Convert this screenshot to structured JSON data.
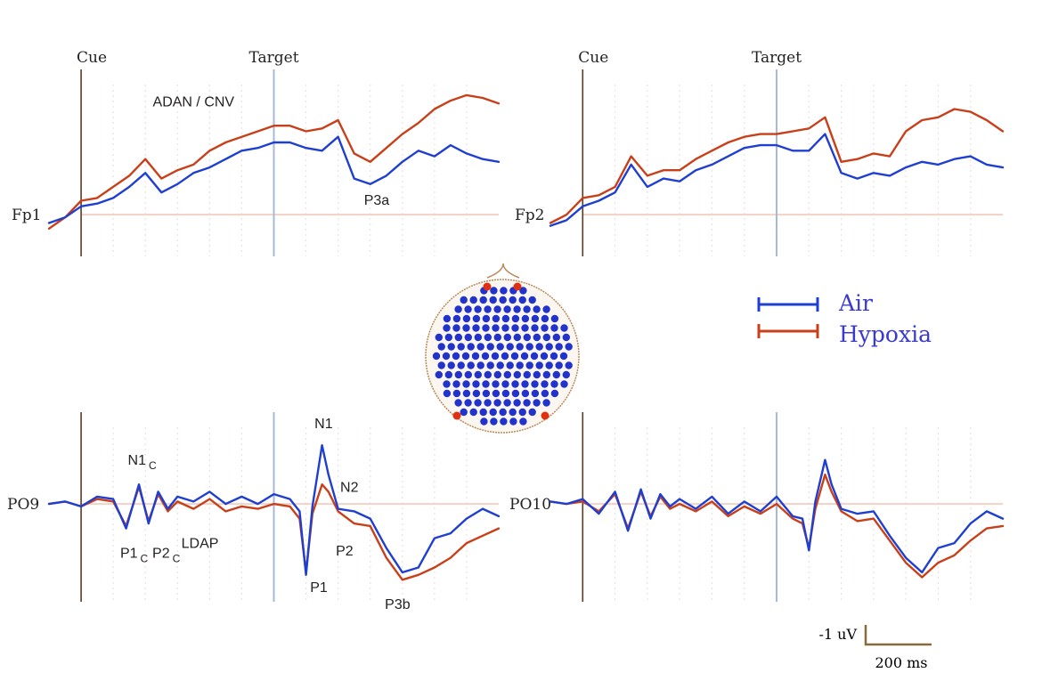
{
  "colors": {
    "air": "#1f3fd0",
    "hypoxia": "#c8401a",
    "marker_line": "#5a3a25",
    "target_line": "#a8b8d8",
    "baseline": "#f1d2c4",
    "grid": "#f2dede",
    "scale_bar": "#8a6a3a",
    "legend_text": "#3a3acf",
    "electrode_dot": "#2233cc",
    "electrode_highlight": "#e03010"
  },
  "legend": {
    "air": "Air",
    "hypoxia": "Hypoxia"
  },
  "head_map": {
    "icon": "electrode-cap-head-map",
    "highlighted_electrodes": [
      "Fp1",
      "Fp2",
      "PO9",
      "PO10"
    ]
  },
  "scale_bar": {
    "amplitude_label": "-1 uV",
    "time_label": "200 ms"
  },
  "chart_data": [
    {
      "type": "line",
      "channel": "Fp1",
      "markers": {
        "cue": "Cue",
        "target": "Target"
      },
      "x_range": [
        -100,
        1300
      ],
      "y_range": [
        -1.5,
        5
      ],
      "cue_time": 0,
      "target_time": 600,
      "component_labels": [
        {
          "text": "ADAN / CNV",
          "x": 350,
          "y": 3.9
        },
        {
          "text": "P3a",
          "x": 920,
          "y": 0.35
        }
      ],
      "series": [
        {
          "name": "Air",
          "x": [
            -100,
            -50,
            0,
            50,
            100,
            150,
            200,
            250,
            300,
            350,
            400,
            450,
            500,
            550,
            600,
            650,
            700,
            750,
            800,
            850,
            900,
            950,
            1000,
            1050,
            1100,
            1150,
            1200,
            1250,
            1300
          ],
          "y": [
            -0.3,
            -0.1,
            0.3,
            0.4,
            0.6,
            1.0,
            1.5,
            0.8,
            1.1,
            1.5,
            1.7,
            2.0,
            2.3,
            2.4,
            2.6,
            2.6,
            2.4,
            2.3,
            2.8,
            1.3,
            1.1,
            1.4,
            1.9,
            2.3,
            2.1,
            2.5,
            2.2,
            2.0,
            1.9
          ]
        },
        {
          "name": "Hypoxia",
          "x": [
            -100,
            -50,
            0,
            50,
            100,
            150,
            200,
            250,
            300,
            350,
            400,
            450,
            500,
            550,
            600,
            650,
            700,
            750,
            800,
            850,
            900,
            950,
            1000,
            1050,
            1100,
            1150,
            1200,
            1250,
            1300
          ],
          "y": [
            -0.5,
            -0.1,
            0.5,
            0.6,
            1.0,
            1.4,
            2.0,
            1.3,
            1.6,
            1.8,
            2.3,
            2.6,
            2.8,
            3.0,
            3.2,
            3.2,
            3.0,
            3.1,
            3.4,
            2.2,
            1.9,
            2.4,
            2.9,
            3.3,
            3.8,
            4.1,
            4.3,
            4.2,
            4.0
          ]
        }
      ]
    },
    {
      "type": "line",
      "channel": "Fp2",
      "markers": {
        "cue": "Cue",
        "target": "Target"
      },
      "x_range": [
        -100,
        1300
      ],
      "y_range": [
        -1.5,
        5
      ],
      "cue_time": 0,
      "target_time": 600,
      "component_labels": [],
      "series": [
        {
          "name": "Air",
          "x": [
            -100,
            -50,
            0,
            50,
            100,
            150,
            200,
            250,
            300,
            350,
            400,
            450,
            500,
            550,
            600,
            650,
            700,
            750,
            800,
            850,
            900,
            950,
            1000,
            1050,
            1100,
            1150,
            1200,
            1250,
            1300
          ],
          "y": [
            -0.4,
            -0.2,
            0.3,
            0.5,
            0.8,
            1.8,
            1.0,
            1.3,
            1.2,
            1.6,
            1.8,
            2.1,
            2.4,
            2.5,
            2.5,
            2.3,
            2.3,
            2.9,
            1.5,
            1.3,
            1.5,
            1.4,
            1.7,
            1.9,
            1.8,
            2.0,
            2.1,
            1.8,
            1.7
          ]
        },
        {
          "name": "Hypoxia",
          "x": [
            -100,
            -50,
            0,
            50,
            100,
            150,
            200,
            250,
            300,
            350,
            400,
            450,
            500,
            550,
            600,
            650,
            700,
            750,
            800,
            850,
            900,
            950,
            1000,
            1050,
            1100,
            1150,
            1200,
            1250,
            1300
          ],
          "y": [
            -0.3,
            0.0,
            0.6,
            0.7,
            1.0,
            2.1,
            1.4,
            1.6,
            1.6,
            2.0,
            2.3,
            2.6,
            2.8,
            2.9,
            2.9,
            3.0,
            3.1,
            3.5,
            1.9,
            2.0,
            2.2,
            2.1,
            3.0,
            3.4,
            3.5,
            3.8,
            3.7,
            3.4,
            3.0
          ]
        }
      ]
    },
    {
      "type": "line",
      "channel": "PO9",
      "markers": {},
      "x_range": [
        -100,
        1300
      ],
      "y_range": [
        -4,
        3.5
      ],
      "cue_time": 0,
      "target_time": 600,
      "component_labels": [
        {
          "text": "N1",
          "sub": "C",
          "x": 190,
          "y": 1.6
        },
        {
          "text": "P1",
          "sub": "C",
          "x": 165,
          "y": -2.2
        },
        {
          "text": "P2",
          "sub": "C",
          "x": 265,
          "y": -2.2
        },
        {
          "text": "LDAP",
          "x": 370,
          "y": -1.8
        },
        {
          "text": "N1",
          "x": 755,
          "y": 3.1
        },
        {
          "text": "N2",
          "x": 835,
          "y": 0.5
        },
        {
          "text": "P1",
          "x": 740,
          "y": -3.6
        },
        {
          "text": "P2",
          "x": 820,
          "y": -2.1
        },
        {
          "text": "P3b",
          "x": 985,
          "y": -4.3
        }
      ],
      "series": [
        {
          "name": "Air",
          "x": [
            -100,
            -50,
            0,
            50,
            100,
            140,
            180,
            210,
            240,
            270,
            300,
            350,
            400,
            450,
            500,
            550,
            600,
            650,
            680,
            700,
            720,
            750,
            770,
            800,
            850,
            900,
            950,
            1000,
            1050,
            1100,
            1150,
            1200,
            1250,
            1300
          ],
          "y": [
            0.0,
            0.1,
            -0.1,
            0.3,
            0.2,
            -1.0,
            0.8,
            -0.8,
            0.5,
            -0.2,
            0.3,
            0.1,
            0.5,
            0.0,
            0.3,
            0.0,
            0.4,
            0.2,
            -0.3,
            -2.9,
            -0.1,
            2.4,
            1.2,
            -0.2,
            -0.3,
            -0.6,
            -1.8,
            -2.8,
            -2.6,
            -1.4,
            -1.2,
            -0.6,
            -0.2,
            -0.5
          ]
        },
        {
          "name": "Hypoxia",
          "x": [
            -100,
            -50,
            0,
            50,
            100,
            140,
            180,
            210,
            240,
            270,
            300,
            350,
            400,
            450,
            500,
            550,
            600,
            650,
            680,
            700,
            720,
            750,
            770,
            800,
            850,
            900,
            950,
            1000,
            1050,
            1100,
            1150,
            1200,
            1250,
            1300
          ],
          "y": [
            0.0,
            0.1,
            -0.1,
            0.2,
            0.1,
            -0.9,
            0.7,
            -0.7,
            0.4,
            -0.3,
            0.1,
            -0.2,
            0.2,
            -0.3,
            -0.1,
            -0.2,
            0.0,
            -0.1,
            -0.6,
            -2.8,
            -0.4,
            0.8,
            0.5,
            -0.3,
            -0.8,
            -0.9,
            -2.2,
            -3.1,
            -2.9,
            -2.6,
            -2.2,
            -1.6,
            -1.3,
            -1.0
          ]
        }
      ]
    },
    {
      "type": "line",
      "channel": "PO10",
      "markers": {},
      "x_range": [
        -100,
        1300
      ],
      "y_range": [
        -4,
        3.5
      ],
      "cue_time": 0,
      "target_time": 600,
      "component_labels": [],
      "series": [
        {
          "name": "Air",
          "x": [
            -100,
            -50,
            0,
            50,
            100,
            140,
            180,
            210,
            240,
            270,
            300,
            350,
            400,
            450,
            500,
            550,
            600,
            650,
            680,
            700,
            720,
            750,
            770,
            800,
            850,
            900,
            950,
            1000,
            1050,
            1100,
            1150,
            1200,
            1250,
            1300
          ],
          "y": [
            0.1,
            0.0,
            0.2,
            -0.4,
            0.5,
            -1.1,
            0.6,
            -0.6,
            0.4,
            -0.1,
            0.2,
            -0.2,
            0.3,
            -0.4,
            0.1,
            -0.3,
            0.3,
            -0.5,
            -0.6,
            -1.9,
            0.1,
            1.8,
            0.8,
            -0.2,
            -0.4,
            -0.3,
            -1.3,
            -2.2,
            -2.8,
            -1.8,
            -1.6,
            -0.8,
            -0.3,
            -0.6
          ]
        },
        {
          "name": "Hypoxia",
          "x": [
            -100,
            -50,
            0,
            50,
            100,
            140,
            180,
            210,
            240,
            270,
            300,
            350,
            400,
            450,
            500,
            550,
            600,
            650,
            680,
            700,
            720,
            750,
            770,
            800,
            850,
            900,
            950,
            1000,
            1050,
            1100,
            1150,
            1200,
            1250,
            1300
          ],
          "y": [
            0.1,
            0.0,
            0.1,
            -0.3,
            0.4,
            -1.0,
            0.5,
            -0.5,
            0.3,
            -0.2,
            0.0,
            -0.3,
            0.1,
            -0.5,
            -0.1,
            -0.4,
            0.0,
            -0.6,
            -0.8,
            -1.8,
            -0.2,
            1.2,
            0.5,
            -0.3,
            -0.7,
            -0.6,
            -1.5,
            -2.4,
            -3.0,
            -2.4,
            -2.1,
            -1.5,
            -1.0,
            -0.9
          ]
        }
      ]
    }
  ]
}
